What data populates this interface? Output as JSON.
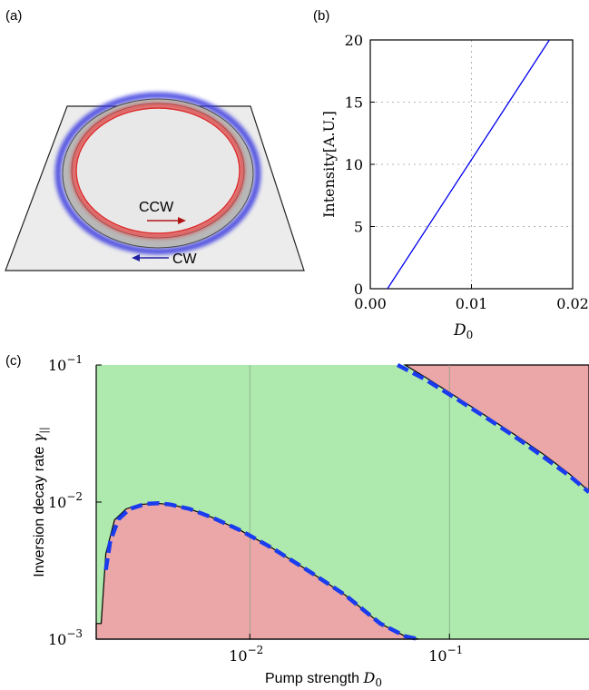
{
  "panels": {
    "a": {
      "label": "(a)",
      "ccw_label": "CCW",
      "cw_label": "CW",
      "colors": {
        "ccw": "#cc2020",
        "cw": "#2a2ac8",
        "ring": "#9a9a9a",
        "slab": "#eeeeee"
      }
    },
    "b": {
      "label": "(b)"
    },
    "c": {
      "label": "(c)"
    }
  },
  "chart_data": [
    {
      "id": "b",
      "type": "line",
      "xlabel": "D",
      "xlabel_sub": "0",
      "ylabel": "Intensity[A.U.]",
      "xlim": [
        0,
        0.02
      ],
      "ylim": [
        0,
        20
      ],
      "xticks": [
        0.0,
        0.01,
        0.02
      ],
      "xtick_labels": [
        "0.00",
        "0.01",
        "0.02"
      ],
      "yticks": [
        0,
        5,
        10,
        15,
        20
      ],
      "ytick_labels": [
        "0",
        "5",
        "10",
        "15",
        "20"
      ],
      "grid": true,
      "series": [
        {
          "color": "#0000ee",
          "x": [
            0.0017,
            0.0177
          ],
          "y": [
            0,
            20
          ]
        }
      ]
    },
    {
      "id": "c",
      "type": "area",
      "xlabel": "Pump strength ",
      "xlabel_math": "D",
      "xlabel_sub": "0",
      "ylabel": "Inversion decay rate ",
      "ylabel_math": "γ",
      "ylabel_sub": "||",
      "xscale": "log",
      "yscale": "log",
      "xlim": [
        0.0017,
        0.5
      ],
      "ylim": [
        0.001,
        0.1
      ],
      "xtick_values": [
        0.01,
        0.1
      ],
      "xtick_labels": [
        {
          "base": "10",
          "exp": "−2"
        },
        {
          "base": "10",
          "exp": "−1"
        }
      ],
      "ytick_values": [
        0.001,
        0.01,
        0.1
      ],
      "ytick_labels": [
        {
          "base": "10",
          "exp": "−3"
        },
        {
          "base": "10",
          "exp": "−2"
        },
        {
          "base": "10",
          "exp": "−1"
        }
      ],
      "colors": {
        "stable": "#aee9ae",
        "unstable": "#eba7a7",
        "boundary": "#000000",
        "theory": "#1a3cee"
      },
      "lower_region": {
        "x": [
          0.0017,
          0.0018,
          0.0019,
          0.0021,
          0.0024,
          0.0028,
          0.0034,
          0.004,
          0.005,
          0.0065,
          0.009,
          0.013,
          0.02,
          0.03,
          0.045,
          0.06,
          0.07
        ],
        "y": [
          0.0013,
          0.0013,
          0.0042,
          0.0074,
          0.0089,
          0.0096,
          0.0098,
          0.0096,
          0.0089,
          0.0077,
          0.0062,
          0.0046,
          0.0031,
          0.0021,
          0.0013,
          0.00105,
          0.001
        ]
      },
      "theory_lower": {
        "x": [
          0.0019,
          0.002,
          0.0022,
          0.0025,
          0.003,
          0.0035,
          0.004,
          0.005,
          0.0065,
          0.009,
          0.013,
          0.02,
          0.03,
          0.045,
          0.06,
          0.07
        ],
        "y": [
          0.0032,
          0.0052,
          0.0075,
          0.0089,
          0.0097,
          0.0098,
          0.0096,
          0.0089,
          0.0077,
          0.0062,
          0.0046,
          0.0031,
          0.0021,
          0.0013,
          0.00105,
          0.001
        ]
      },
      "upper_region": {
        "x": [
          0.06,
          0.075,
          0.1,
          0.15,
          0.22,
          0.3,
          0.4,
          0.5
        ],
        "y": [
          0.1,
          0.082,
          0.063,
          0.043,
          0.03,
          0.022,
          0.016,
          0.012
        ]
      },
      "theory_upper": {
        "x": [
          0.055,
          0.075,
          0.1,
          0.15,
          0.22,
          0.3,
          0.4,
          0.5
        ],
        "y": [
          0.1,
          0.079,
          0.061,
          0.042,
          0.029,
          0.021,
          0.0155,
          0.0118
        ]
      }
    }
  ]
}
